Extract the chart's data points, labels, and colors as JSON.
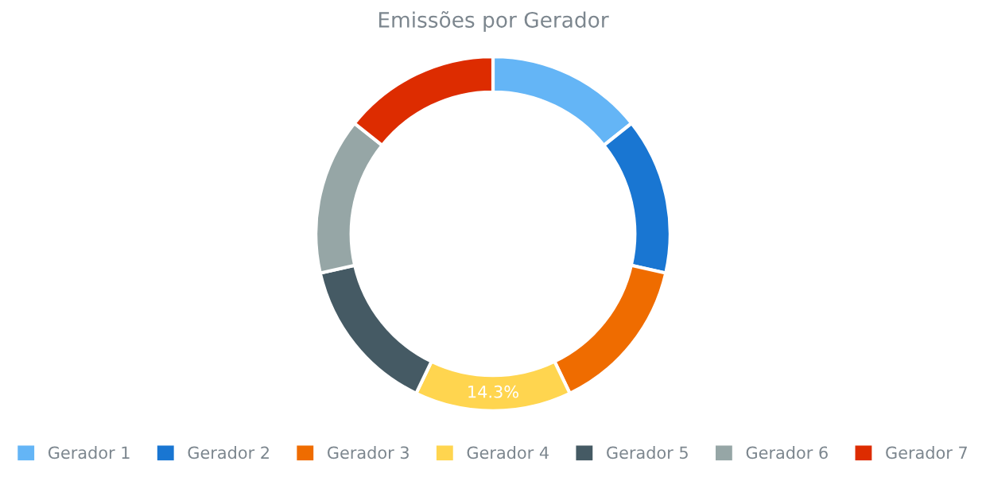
{
  "chart_data": {
    "type": "donut",
    "title": "Emissões por Gerador",
    "categories": [
      "Gerador 1",
      "Gerador 2",
      "Gerador 3",
      "Gerador 4",
      "Gerador 5",
      "Gerador 6",
      "Gerador 7"
    ],
    "values": [
      14.3,
      14.3,
      14.3,
      14.3,
      14.3,
      14.3,
      14.3
    ],
    "value_labels": [
      null,
      null,
      null,
      "14.3%",
      null,
      null,
      null
    ],
    "colors": [
      "#64b5f6",
      "#1976d2",
      "#ef6c00",
      "#ffd54f",
      "#455a64",
      "#96a6a6",
      "#dd2c00"
    ],
    "legend": "bottom"
  }
}
